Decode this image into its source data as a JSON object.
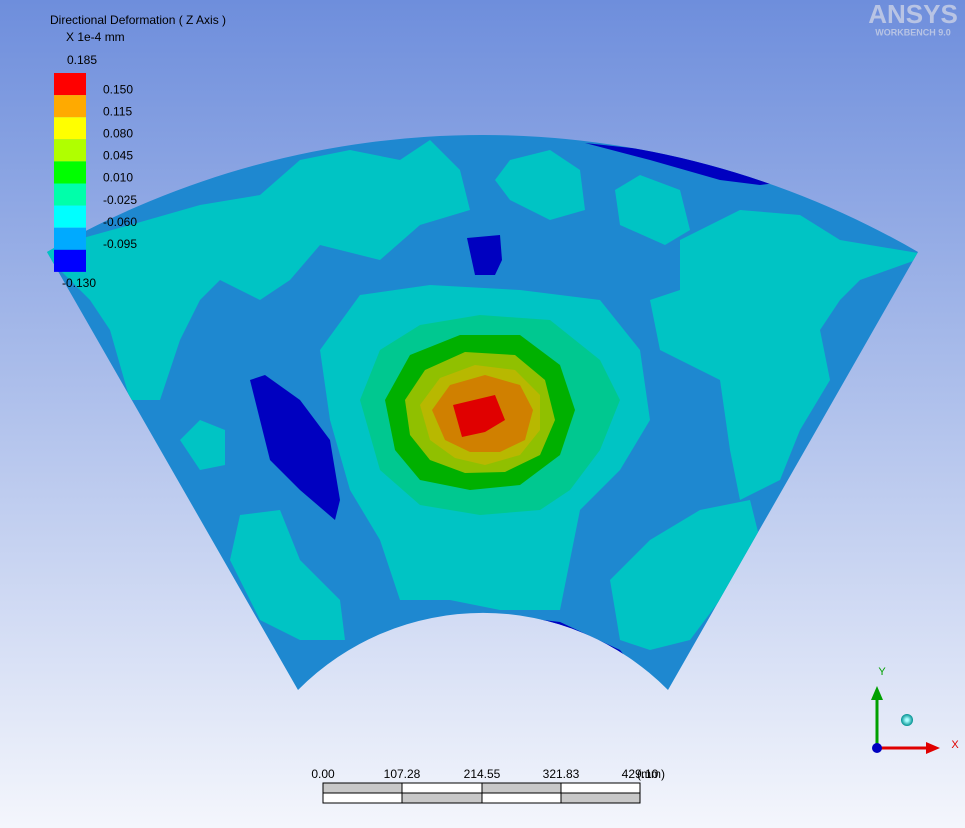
{
  "legend": {
    "title": "Directional Deformation ( Z Axis )",
    "unit": "X 1e-4 mm",
    "labels": [
      "0.185",
      "0.150",
      "0.115",
      "0.080",
      "0.045",
      "0.010",
      "-0.025",
      "-0.060",
      "-0.095",
      "-0.130"
    ],
    "colors": [
      "#ff0000",
      "#ffaa00",
      "#ffff00",
      "#b0ff00",
      "#00ff00",
      "#00ffaa",
      "#00ffff",
      "#00aaff",
      "#0000ff"
    ]
  },
  "logo": {
    "name": "ANSYS",
    "version": "WORKBENCH 9.0"
  },
  "scale_bar": {
    "labels": [
      "0.00",
      "107.28",
      "214.55",
      "321.83",
      "429.10"
    ],
    "unit": "(mm)"
  },
  "triad": {
    "x": "X",
    "y": "Y"
  }
}
